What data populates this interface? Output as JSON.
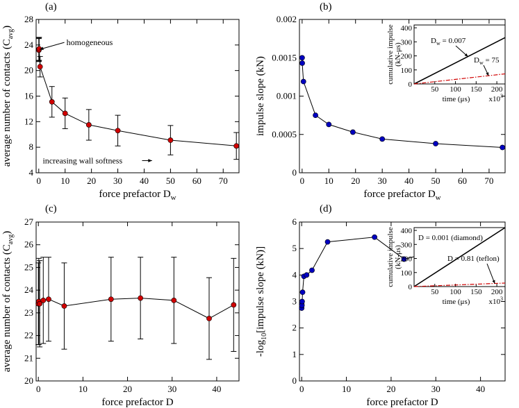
{
  "chart_data": [
    {
      "id": "a",
      "type": "line",
      "panel_label": "(a)",
      "xlabel": "force prefactor D",
      "xlabel_sub": "w",
      "ylabel": "average number of contacts (C",
      "ylabel_sub": "avg",
      "ylabel_close": ")",
      "xlim": [
        -1,
        76
      ],
      "ylim": [
        4,
        28
      ],
      "xticks": [
        0,
        10,
        20,
        30,
        40,
        50,
        60,
        70
      ],
      "yticks": [
        4,
        8,
        12,
        16,
        20,
        24,
        28
      ],
      "grid": false,
      "series": [
        {
          "color": "#d00000",
          "x": [
            0.007,
            0.05,
            0.15,
            0.5,
            5,
            10,
            19,
            30,
            50,
            75
          ],
          "y": [
            23.3,
            23.2,
            23.4,
            20.6,
            15.1,
            13.3,
            11.5,
            10.6,
            9.1,
            8.2
          ],
          "err": [
            1.8,
            1.8,
            1.8,
            1.6,
            2.4,
            2.4,
            2.4,
            2.4,
            2.3,
            2.1
          ]
        }
      ],
      "annotations": [
        {
          "text": "homogeneous",
          "x": 10.5,
          "y": 24.4,
          "arrow_to": [
            0.3,
            23.3
          ]
        },
        {
          "text": "increasing wall softness",
          "x": 1.5,
          "y": 5.9,
          "arrow_to": [
            43,
            5.9
          ]
        }
      ]
    },
    {
      "id": "b",
      "type": "line",
      "panel_label": "(b)",
      "xlabel": "force prefactor D",
      "xlabel_sub": "w",
      "ylabel": "impulse slope (kN)",
      "xlim": [
        -1,
        76
      ],
      "ylim": [
        0,
        0.002
      ],
      "xticks": [
        0,
        10,
        20,
        30,
        40,
        50,
        60,
        70
      ],
      "yticks": [
        0,
        0.0005,
        0.001,
        0.0015,
        0.002
      ],
      "ytick_labels": [
        "0",
        "0.0005",
        "0.001",
        "0.0015",
        "0.002"
      ],
      "grid": false,
      "series": [
        {
          "color": "#0000c0",
          "x": [
            0.007,
            0.05,
            0.5,
            5,
            10,
            19,
            30,
            50,
            75
          ],
          "y": [
            0.0015,
            0.00143,
            0.00119,
            0.00075,
            0.00063,
            0.00053,
            0.00044,
            0.00038,
            0.00033
          ]
        }
      ],
      "inset": {
        "xlabel": "time (μs)",
        "xlabel_suffix": "x10",
        "xlabel_exp": "3",
        "ylabel": "cumulative impulse",
        "ylabel2": "(kN-μs)",
        "xlim": [
          0,
          220
        ],
        "ylim": [
          0,
          420
        ],
        "xticks": [
          50,
          100,
          150,
          200
        ],
        "yticks": [
          0,
          100,
          200,
          300,
          400
        ],
        "series": [
          {
            "name": "D",
            "name_sub": "w",
            "name_val": " = 0.007",
            "style": "solid",
            "color": "#000000",
            "x": [
              0,
              220
            ],
            "y": [
              0,
              330
            ]
          },
          {
            "name": "D",
            "name_sub": "w",
            "name_val": " = 75",
            "style": "dashdot",
            "color": "#d00000",
            "x": [
              0,
              220
            ],
            "y": [
              0,
              72
            ]
          }
        ]
      }
    },
    {
      "id": "c",
      "type": "line",
      "panel_label": "(c)",
      "xlabel": "force prefactor D",
      "ylabel": "average number of contacts (C",
      "ylabel_sub": "avg",
      "ylabel_close": ")",
      "xlim": [
        -0.5,
        45
      ],
      "ylim": [
        20,
        27
      ],
      "xticks": [
        0,
        10,
        20,
        30,
        40
      ],
      "yticks": [
        20,
        21,
        22,
        23,
        24,
        25,
        26,
        27
      ],
      "grid": false,
      "series": [
        {
          "color": "#d00000",
          "x": [
            0.001,
            0.1,
            0.3,
            1.1,
            2.3,
            5.8,
            16.3,
            22.9,
            30.4,
            38.3,
            43.8
          ],
          "y": [
            23.4,
            23.5,
            23.4,
            23.55,
            23.6,
            23.3,
            23.6,
            23.65,
            23.55,
            22.75,
            23.35
          ],
          "err": [
            1.8,
            1.9,
            1.9,
            1.9,
            1.85,
            1.9,
            1.85,
            1.8,
            1.9,
            1.8,
            2.05
          ]
        }
      ]
    },
    {
      "id": "d",
      "type": "line",
      "panel_label": "(d)",
      "xlabel": "force prefactor D",
      "ylabel": "-log",
      "ylabel_sub": "10",
      "ylabel_rest": "[impulse slope (kN)]",
      "xlim": [
        -0.5,
        45.5
      ],
      "ylim": [
        0,
        6
      ],
      "xticks": [
        0,
        10,
        20,
        30,
        40
      ],
      "yticks": [
        0,
        1,
        2,
        3,
        4,
        5,
        6
      ],
      "grid": false,
      "series": [
        {
          "color": "#0000c0",
          "x": [
            0.001,
            0.01,
            0.05,
            0.1,
            0.2,
            0.5,
            1.1,
            2.3,
            5.8,
            16.3,
            22.9,
            30.4,
            38.3,
            43.8
          ],
          "y": [
            2.75,
            2.9,
            2.85,
            3.0,
            3.35,
            3.95,
            4.0,
            4.18,
            5.25,
            5.43,
            4.6,
            4.9,
            4.88,
            5.35
          ]
        }
      ],
      "inset": {
        "xlabel": "time (μs)",
        "xlabel_suffix": "x10",
        "xlabel_exp": "3",
        "ylabel": "cumulative impulse",
        "ylabel2": "(kN-μs)",
        "xlim": [
          0,
          220
        ],
        "ylim": [
          0,
          420
        ],
        "xticks": [
          50,
          100,
          150,
          200
        ],
        "yticks": [
          0,
          100,
          200,
          300,
          400
        ],
        "series": [
          {
            "name": "D = 0.001 (diamond)",
            "style": "solid",
            "color": "#000000",
            "x": [
              0,
              220
            ],
            "y": [
              0,
              420
            ]
          },
          {
            "name": "D = 0.81 (teflon)",
            "style": "dashdot",
            "color": "#d00000",
            "x": [
              0,
              220
            ],
            "y": [
              0,
              25
            ]
          }
        ]
      }
    }
  ]
}
